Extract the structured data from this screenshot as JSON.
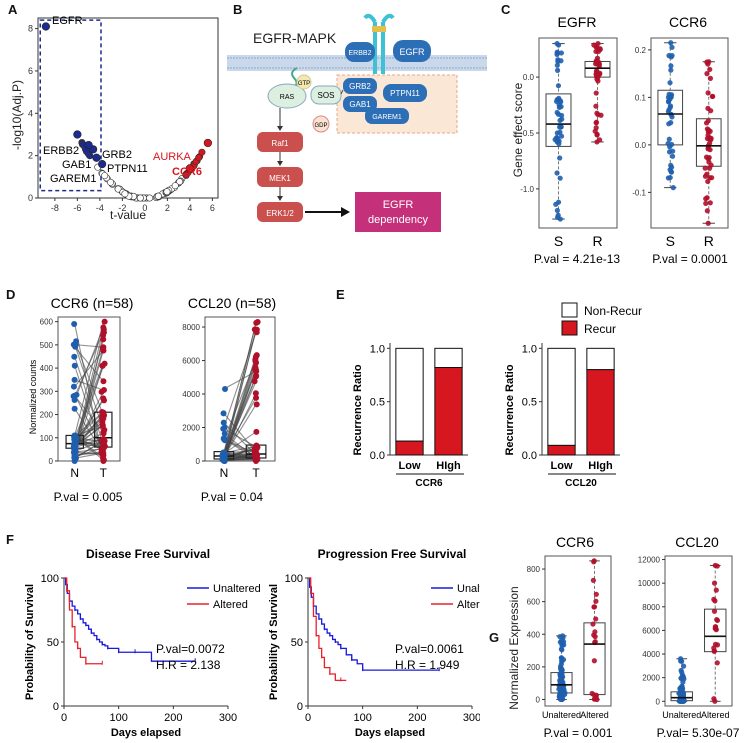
{
  "figure": {
    "panel_labels": {
      "A": "A",
      "B": "B",
      "C": "C",
      "D": "D",
      "E": "E",
      "F": "F",
      "G": "G"
    }
  },
  "colors": {
    "navy": "#1c2b8f",
    "blue_dot": "#1f5fae",
    "red_dot": "#b0102a",
    "red_bar": "#d7171f",
    "km_blue": "#1a1adb",
    "km_red": "#e8212b",
    "pathway_red": "#c9504d",
    "dependency_pink": "#c4317a",
    "receptor_blue": "#2c6fb7"
  },
  "panel_b": {
    "title": "EGFR-MAPK",
    "nodes": {
      "erbb2": "ERBB2",
      "egfr": "EGFR",
      "grb2": "GRB2",
      "ptpn11": "PTPN11",
      "gab1": "GAB1",
      "garem1": "GAREM1",
      "ras": "RAS",
      "gtp": "GTP",
      "gdp": "GDP",
      "sos": "SOS",
      "raf1": "Raf1",
      "mek1": "MEK1",
      "erk12": "ERK1/2"
    },
    "dependency": {
      "line1": "EGFR",
      "line2": "dependency"
    }
  },
  "chart_data": [
    {
      "id": "A",
      "type": "scatter",
      "title": "",
      "xlabel": "t-value",
      "ylabel": "-log10(Adj.P)",
      "xlim": [
        -9.5,
        6.5
      ],
      "ylim": [
        0,
        8.5
      ],
      "xticks": [
        -8,
        -6,
        -4,
        -2,
        0,
        2,
        4,
        6
      ],
      "yticks": [
        0,
        2,
        4,
        6,
        8
      ],
      "highlight_box": {
        "x": [
          -9.3,
          -3.9
        ],
        "y": [
          0.35,
          8.4
        ]
      },
      "labeled_points": [
        {
          "name": "EGFR",
          "x": -8.8,
          "y": 8.1,
          "group": "blue"
        },
        {
          "name": "ERBB2",
          "x": -6.0,
          "y": 3.0,
          "group": "blue"
        },
        {
          "name": "GRB2",
          "x": -4.6,
          "y": 2.3,
          "group": "blue"
        },
        {
          "name": "PTPN11",
          "x": -4.3,
          "y": 1.9,
          "group": "blue"
        },
        {
          "name": "GAB1",
          "x": -5.0,
          "y": 2.5,
          "group": "blue"
        },
        {
          "name": "GAREM1",
          "x": -3.8,
          "y": 1.6,
          "group": "blue"
        },
        {
          "name": "AURKA",
          "x": 4.0,
          "y": 1.4,
          "group": "red"
        },
        {
          "name": "CCR6",
          "x": 5.6,
          "y": 2.6,
          "group": "red"
        }
      ],
      "labels": {
        "egfr": "EGFR",
        "erbb2": "ERBB2",
        "gab1": "GAB1",
        "garem1": "GAREM1",
        "grb2": "GRB2",
        "ptpn11": "PTPN11",
        "aurka": "AURKA",
        "ccr6": "CCR6"
      }
    },
    {
      "id": "C1",
      "type": "box",
      "title": "EGFR",
      "ylabel": "Gene effect score",
      "categories": [
        "S",
        "R"
      ],
      "ylim": [
        -1.35,
        0.35
      ],
      "yticks": [
        -1.0,
        -0.5,
        0.0
      ],
      "ytick_labels": [
        "-1.0",
        "-0.5",
        "0.0"
      ],
      "boxes": [
        {
          "name": "S",
          "min": -1.27,
          "q1": -0.62,
          "median": -0.42,
          "q3": -0.15,
          "max": 0.3
        },
        {
          "name": "R",
          "min": -0.58,
          "q1": 0.0,
          "median": 0.08,
          "q3": 0.14,
          "max": 0.3
        }
      ],
      "pval": "P.val = 4.21e-13"
    },
    {
      "id": "C2",
      "type": "box",
      "title": "CCR6",
      "categories": [
        "S",
        "R"
      ],
      "ylim": [
        -0.175,
        0.225
      ],
      "yticks": [
        -0.1,
        0.0,
        0.1,
        0.2
      ],
      "ytick_labels": [
        "-0.1",
        "0.0",
        "0.1",
        "0.2"
      ],
      "boxes": [
        {
          "name": "S",
          "min": -0.09,
          "q1": 0.0,
          "median": 0.065,
          "q3": 0.115,
          "max": 0.215
        },
        {
          "name": "R",
          "min": -0.165,
          "q1": -0.045,
          "median": -0.002,
          "q3": 0.055,
          "max": 0.175
        }
      ],
      "pval": "P.val = 0.0001"
    },
    {
      "id": "D1",
      "type": "paired",
      "title": "CCR6 (n=58)",
      "ylabel": "Normalized counts",
      "categories": [
        "N",
        "T"
      ],
      "ylim": [
        0,
        620
      ],
      "yticks": [
        0,
        100,
        200,
        300,
        400,
        500,
        600
      ],
      "ytick_labels": [
        "0",
        "100",
        "200",
        "300",
        "400",
        "500",
        "600"
      ],
      "boxes": [
        {
          "name": "N",
          "min": 0,
          "q1": 55,
          "median": 75,
          "q3": 110,
          "max": 590
        },
        {
          "name": "T",
          "min": 0,
          "q1": 60,
          "median": 100,
          "q3": 210,
          "max": 600
        }
      ],
      "pval": "P.val = 0.005"
    },
    {
      "id": "D2",
      "type": "paired",
      "title": "CCL20 (n=58)",
      "categories": [
        "N",
        "T"
      ],
      "ylim": [
        0,
        8600
      ],
      "yticks": [
        0,
        2000,
        4000,
        6000,
        8000
      ],
      "ytick_labels": [
        "0",
        "2000",
        "4000",
        "6000",
        "8000"
      ],
      "boxes": [
        {
          "name": "N",
          "min": 0,
          "q1": 120,
          "median": 300,
          "q3": 560,
          "max": 4300
        },
        {
          "name": "T",
          "min": 0,
          "q1": 180,
          "median": 420,
          "q3": 950,
          "max": 8300
        }
      ],
      "pval": "P.val = 0.04"
    },
    {
      "id": "E",
      "type": "stacked_bar",
      "ylabel": "Recurrence Ratio",
      "legend": [
        "Non-Recur",
        "Recur"
      ],
      "ylim": [
        0,
        1.05
      ],
      "yticks": [
        0.0,
        0.5,
        1.0
      ],
      "ytick_labels": [
        "0.0",
        "0.5",
        "1.0"
      ],
      "groups": [
        {
          "name": "CCR6",
          "categories": [
            "Low",
            "HIgh"
          ],
          "recur": [
            0.13,
            0.82
          ],
          "non_recur": [
            0.87,
            0.18
          ]
        },
        {
          "name": "CCL20",
          "categories": [
            "Low",
            "HIgh"
          ],
          "recur": [
            0.09,
            0.8
          ],
          "non_recur": [
            0.91,
            0.2
          ]
        }
      ]
    },
    {
      "id": "F1",
      "type": "line",
      "title": "Disease Free Survival",
      "xlabel": "Days elapsed",
      "ylabel": "Probability of Survival",
      "xlim": [
        0,
        300
      ],
      "ylim": [
        0,
        100
      ],
      "xticks": [
        0,
        100,
        200,
        300
      ],
      "yticks": [
        0,
        50,
        100
      ],
      "series": [
        {
          "name": "Unaltered",
          "x": [
            0,
            3,
            6,
            10,
            15,
            20,
            25,
            30,
            35,
            40,
            45,
            50,
            55,
            60,
            65,
            70,
            75,
            80,
            90,
            100,
            110,
            130,
            160,
            240
          ],
          "y": [
            100,
            95,
            88,
            82,
            78,
            75,
            72,
            68,
            65,
            63,
            60,
            57,
            55,
            52,
            50,
            48,
            47,
            45,
            45,
            42,
            42,
            42,
            35,
            35
          ]
        },
        {
          "name": "Altered",
          "x": [
            0,
            5,
            10,
            15,
            20,
            25,
            30,
            40,
            60,
            70
          ],
          "y": [
            100,
            90,
            75,
            62,
            50,
            45,
            38,
            33,
            33,
            33
          ]
        }
      ],
      "pval": "P.val=0.0072",
      "hr": "H.R = 2.138"
    },
    {
      "id": "F2",
      "type": "line",
      "title": "Progression Free Survival",
      "xlabel": "Days elapsed",
      "ylabel": "Probability of Survival",
      "xlim": [
        0,
        300
      ],
      "ylim": [
        0,
        100
      ],
      "xticks": [
        0,
        100,
        200,
        300
      ],
      "yticks": [
        0,
        50,
        100
      ],
      "series": [
        {
          "name": "Unaltered",
          "x": [
            0,
            3,
            6,
            10,
            15,
            20,
            25,
            30,
            35,
            40,
            45,
            50,
            55,
            60,
            70,
            80,
            90,
            100,
            110,
            240
          ],
          "y": [
            100,
            93,
            85,
            78,
            72,
            68,
            64,
            60,
            57,
            55,
            52,
            50,
            48,
            45,
            40,
            36,
            33,
            28,
            28,
            28
          ]
        },
        {
          "name": "Altered",
          "x": [
            0,
            5,
            10,
            15,
            20,
            25,
            30,
            40,
            50,
            60,
            70
          ],
          "y": [
            100,
            88,
            70,
            55,
            45,
            38,
            30,
            25,
            20,
            20,
            20
          ]
        }
      ],
      "pval": "P.val=0.0061",
      "hr": "H.R = 1.949"
    },
    {
      "id": "G1",
      "type": "box",
      "title": "CCR6",
      "ylabel": "Normalized Expression",
      "categories": [
        "Unaltered",
        "Altered"
      ],
      "ylim": [
        -40,
        880
      ],
      "yticks": [
        0,
        200,
        400,
        600,
        800
      ],
      "ytick_labels": [
        "0",
        "200",
        "400",
        "600",
        "800"
      ],
      "boxes": [
        {
          "name": "Unaltered",
          "min": 0,
          "q1": 40,
          "median": 90,
          "q3": 165,
          "max": 390
        },
        {
          "name": "Altered",
          "min": 0,
          "q1": 30,
          "median": 340,
          "q3": 470,
          "max": 850
        }
      ],
      "pval": "P.val = 0.001"
    },
    {
      "id": "G2",
      "type": "box",
      "title": "CCL20",
      "categories": [
        "Unaltered",
        "Altered"
      ],
      "ylim": [
        -400,
        12300
      ],
      "yticks": [
        0,
        2000,
        4000,
        6000,
        8000,
        10000,
        12000
      ],
      "ytick_labels": [
        "0",
        "2000",
        "4000",
        "6000",
        "8000",
        "10000",
        "12000"
      ],
      "boxes": [
        {
          "name": "Unaltered",
          "min": 0,
          "q1": 50,
          "median": 300,
          "q3": 800,
          "max": 3600
        },
        {
          "name": "Altered",
          "min": 0,
          "q1": 4200,
          "median": 5500,
          "q3": 7800,
          "max": 11500
        }
      ],
      "pval": "P.val= 5.30e-07"
    }
  ]
}
